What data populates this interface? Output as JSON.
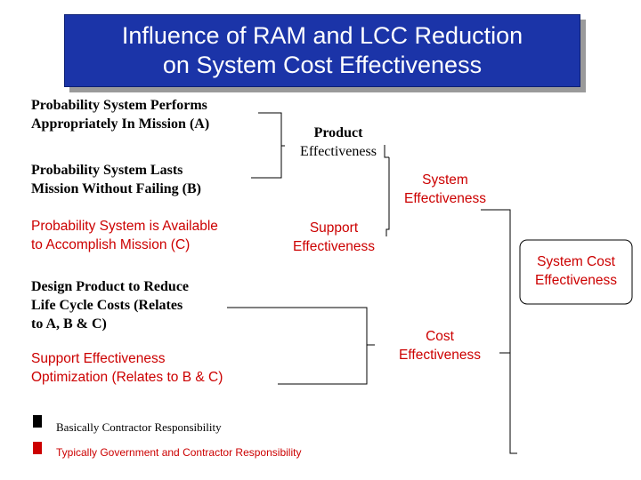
{
  "title": {
    "line1": "Influence of RAM and LCC Reduction",
    "line2": "on System Cost Effectiveness"
  },
  "inputs": {
    "a": {
      "line1": "Probability System Performs",
      "line2": "Appropriately In Mission (A)"
    },
    "b": {
      "line1": "Probability System Lasts",
      "line2": "Mission Without Failing (B)"
    },
    "c": {
      "line1": "Probability System is Available",
      "line2": "to Accomplish Mission (C)"
    },
    "design": {
      "line1": "Design Product to Reduce",
      "line2": "Life Cycle Costs (Relates",
      "line3": "to A, B & C)"
    },
    "support_opt": {
      "line1": "Support Effectiveness",
      "line2": "Optimization (Relates to B & C)"
    }
  },
  "nodes": {
    "product": {
      "line1": "Product",
      "line2": "Effectiveness"
    },
    "support": {
      "line1": "Support",
      "line2": "Effectiveness"
    },
    "system": {
      "line1": "System",
      "line2": "Effectiveness"
    },
    "cost": {
      "line1": "Cost",
      "line2": "Effectiveness"
    },
    "system_cost": {
      "line1": "System Cost",
      "line2": "Effectiveness"
    }
  },
  "legend": {
    "contractor": "Basically Contractor Responsibility",
    "gov_contractor": "Typically Government and Contractor Responsibility"
  },
  "colors": {
    "title_bg": "#1b34a8",
    "contractor": "#000000",
    "gov_contractor": "#cc0000"
  }
}
